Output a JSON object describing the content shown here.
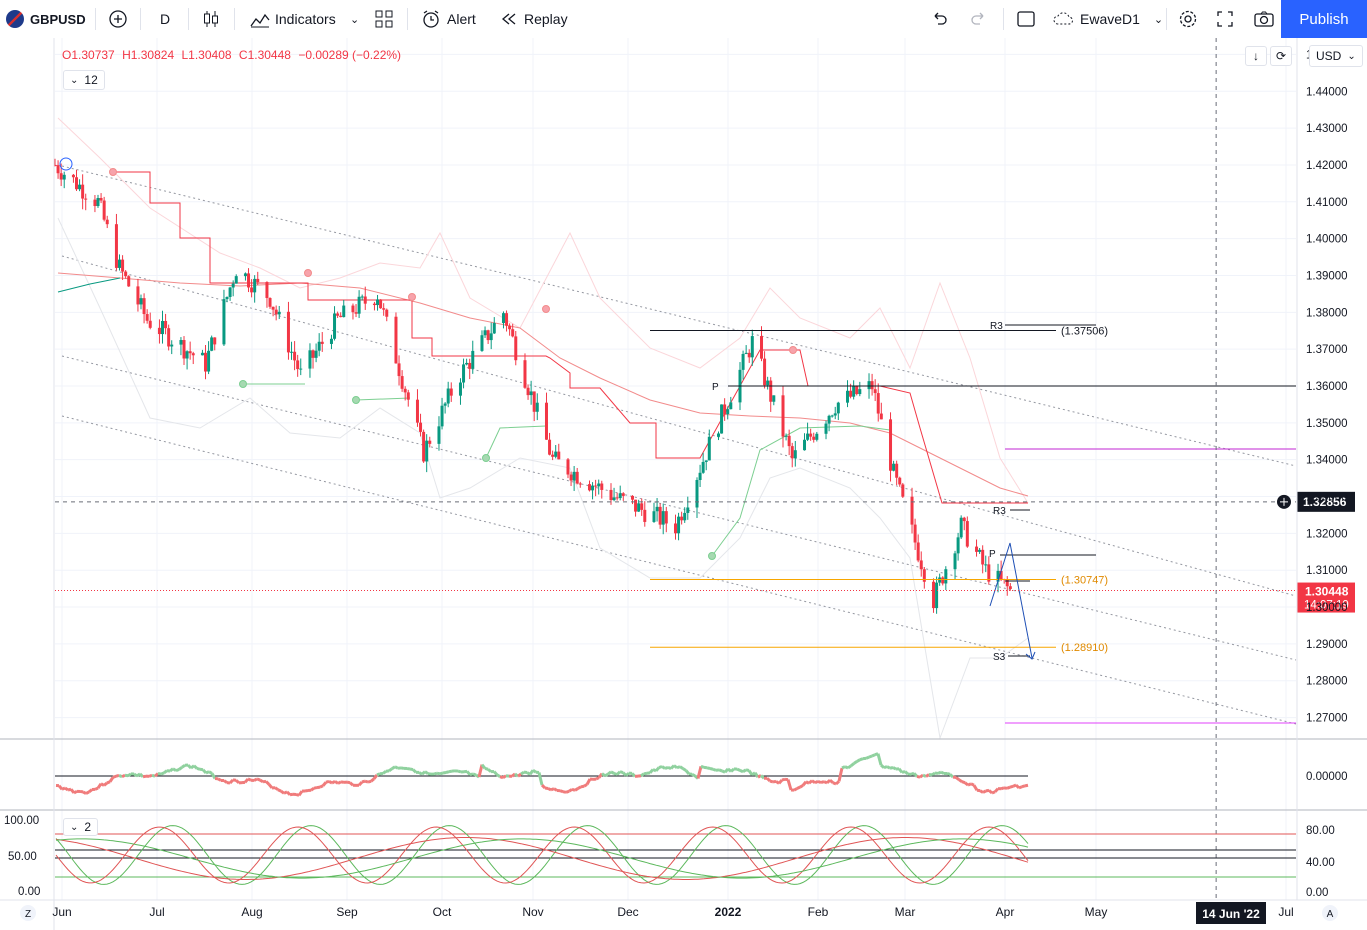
{
  "toolbar": {
    "symbol": "GBPUSD",
    "interval": "D",
    "indicators_label": "Indicators",
    "alert_label": "Alert",
    "replay_label": "Replay",
    "layout_name": "EwaveD1",
    "publish_label": "Publish"
  },
  "legend": {
    "o_key": "O",
    "o_val": "1.30737",
    "h_key": "H",
    "h_val": "1.30824",
    "l_key": "L",
    "l_val": "1.30408",
    "c_key": "C",
    "c_val": "1.30448",
    "change": "−0.00289 (−0.22%)",
    "indicators_count": "12",
    "stoch_count": "2"
  },
  "price_scale": {
    "currency": "USD",
    "ticks": [
      "1.45000",
      "1.44000",
      "1.43000",
      "1.42000",
      "1.41000",
      "1.40000",
      "1.39000",
      "1.38000",
      "1.37000",
      "1.36000",
      "1.35000",
      "1.34000",
      "1.33000",
      "1.32000",
      "1.31000",
      "1.30000",
      "1.29000",
      "1.28000",
      "1.27000"
    ],
    "crosshair_price": "1.32856",
    "last_price": "1.30448",
    "countdown": "14:07:19"
  },
  "osc_scale": {
    "ticks": [
      "0.00000"
    ]
  },
  "stoch_scale": {
    "right_ticks": [
      "80.00",
      "40.00",
      "0.00"
    ],
    "left_ticks": [
      "100.00",
      "50.00",
      "0.00"
    ]
  },
  "time_axis": {
    "labels": [
      "Jun",
      "Jul",
      "Aug",
      "Sep",
      "Oct",
      "Nov",
      "Dec",
      "2022",
      "Feb",
      "Mar",
      "Apr",
      "May",
      "Jul"
    ],
    "crosshair_date": "14 Jun '22",
    "left_button": "Z",
    "right_button": "A"
  },
  "annotations": {
    "r3_upper": "R3",
    "level_high": "(1.37506)",
    "p_upper": "P",
    "r3_lower": "R3",
    "p_lower": "P",
    "level_mid": "(1.30747)",
    "s3": "S3",
    "level_low": "(1.28910)"
  },
  "colors": {
    "up": "#089981",
    "down": "#f23645",
    "accent": "#2962ff",
    "orange": "#f7a600",
    "magenta": "#e040fb"
  },
  "chart_data": {
    "type": "candlestick",
    "symbol": "GBPUSD",
    "interval": "D",
    "ylim": [
      1.265,
      1.455
    ],
    "x_range": [
      "2021-06-01",
      "2022-07-10"
    ],
    "candles": [
      {
        "date": "2021-06-01",
        "close": 1.42
      },
      {
        "date": "2021-06-15",
        "close": 1.41
      },
      {
        "date": "2021-06-22",
        "close": 1.392
      },
      {
        "date": "2021-07-01",
        "close": 1.378
      },
      {
        "date": "2021-07-20",
        "close": 1.366
      },
      {
        "date": "2021-07-30",
        "close": 1.392
      },
      {
        "date": "2021-08-10",
        "close": 1.384
      },
      {
        "date": "2021-08-20",
        "close": 1.363
      },
      {
        "date": "2021-09-01",
        "close": 1.378
      },
      {
        "date": "2021-09-14",
        "close": 1.385
      },
      {
        "date": "2021-09-29",
        "close": 1.342
      },
      {
        "date": "2021-10-10",
        "close": 1.362
      },
      {
        "date": "2021-10-25",
        "close": 1.38
      },
      {
        "date": "2021-11-10",
        "close": 1.34
      },
      {
        "date": "2021-11-30",
        "close": 1.33
      },
      {
        "date": "2021-12-20",
        "close": 1.322
      },
      {
        "date": "2022-01-05",
        "close": 1.354
      },
      {
        "date": "2022-01-14",
        "close": 1.372
      },
      {
        "date": "2022-01-27",
        "close": 1.34
      },
      {
        "date": "2022-02-10",
        "close": 1.355
      },
      {
        "date": "2022-02-22",
        "close": 1.36
      },
      {
        "date": "2022-03-01",
        "close": 1.336
      },
      {
        "date": "2022-03-14",
        "close": 1.302
      },
      {
        "date": "2022-03-23",
        "close": 1.322
      },
      {
        "date": "2022-03-31",
        "close": 1.31
      },
      {
        "date": "2022-04-08",
        "close": 1.30448
      }
    ],
    "levels": [
      1.37506,
      1.30747,
      1.2891
    ],
    "crosshair": {
      "date": "2022-06-14",
      "price": 1.32856
    },
    "last": 1.30448,
    "grid": true
  }
}
